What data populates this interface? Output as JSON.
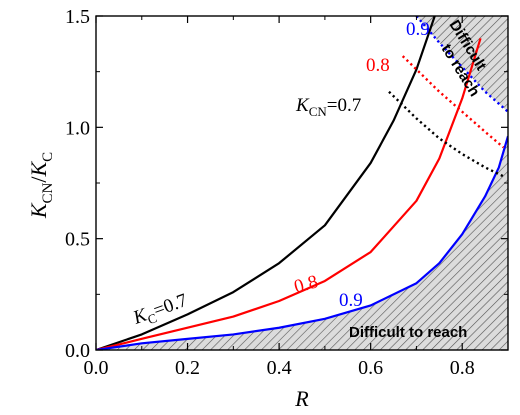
{
  "chart_data": {
    "type": "line",
    "xlabel": "R",
    "ylabel_main": "K",
    "ylabel_sub_num": "CN",
    "ylabel_slash": "/",
    "ylabel_sub_den": "C",
    "xlim": [
      0.0,
      0.9
    ],
    "ylim": [
      0.0,
      1.5
    ],
    "x_ticks": [
      "0.0",
      "0.2",
      "0.4",
      "0.6",
      "0.8"
    ],
    "x_tick_values": [
      0.0,
      0.2,
      0.4,
      0.6,
      0.8
    ],
    "y_ticks": [
      "0.0",
      "0.5",
      "1.0",
      "1.5"
    ],
    "y_tick_values": [
      0.0,
      0.5,
      1.0,
      1.5
    ],
    "series": [
      {
        "name": "0.7",
        "style": "solid",
        "color": "#000000",
        "x": [
          0,
          0.1,
          0.2,
          0.3,
          0.4,
          0.5,
          0.6,
          0.65,
          0.7,
          0.74
        ],
        "y": [
          0,
          0.07,
          0.16,
          0.26,
          0.39,
          0.56,
          0.84,
          1.03,
          1.26,
          1.5
        ]
      },
      {
        "name": "0.8",
        "style": "solid",
        "color": "#ff0000",
        "x": [
          0,
          0.1,
          0.2,
          0.3,
          0.4,
          0.5,
          0.6,
          0.7,
          0.75,
          0.8,
          0.84
        ],
        "y": [
          0,
          0.05,
          0.1,
          0.15,
          0.22,
          0.31,
          0.44,
          0.67,
          0.86,
          1.13,
          1.4
        ]
      },
      {
        "name": "0.9",
        "style": "solid",
        "color": "#0000ff",
        "x": [
          0,
          0.1,
          0.2,
          0.3,
          0.4,
          0.5,
          0.6,
          0.7,
          0.75,
          0.8,
          0.85,
          0.88,
          0.9
        ],
        "y": [
          0,
          0.03,
          0.05,
          0.07,
          0.1,
          0.14,
          0.2,
          0.3,
          0.39,
          0.52,
          0.69,
          0.82,
          0.96
        ]
      },
      {
        "name": "0.7",
        "style": "dotted",
        "color": "#000000",
        "x": [
          0.64,
          0.7,
          0.75,
          0.8,
          0.85,
          0.89
        ],
        "y": [
          1.16,
          1.04,
          0.95,
          0.88,
          0.82,
          0.78
        ]
      },
      {
        "name": "0.8",
        "style": "dotted",
        "color": "#ff0000",
        "x": [
          0.67,
          0.7,
          0.75,
          0.8,
          0.85,
          0.89
        ],
        "y": [
          1.32,
          1.26,
          1.16,
          1.07,
          0.98,
          0.91
        ]
      },
      {
        "name": "0.9",
        "style": "dotted",
        "color": "#0000ff",
        "x": [
          0.7,
          0.75,
          0.8,
          0.85,
          0.9
        ],
        "y": [
          1.5,
          1.38,
          1.27,
          1.16,
          1.07
        ]
      }
    ],
    "annotations": {
      "kc_label_main": "K",
      "kc_label_sub": "C",
      "kc_label_value": "=0.7",
      "red_solid_label": "0.8",
      "blue_solid_label": "0.9",
      "kcn_label_main": "K",
      "kcn_label_sub": "CN",
      "kcn_label_value": "=0.7",
      "red_dotted_label": "0.8",
      "blue_dotted_label": "0.9",
      "difficult_bottom": "Difficult to reach",
      "difficult_top_line1": "Difficult",
      "difficult_top_line2": "to reach"
    },
    "grid": false,
    "legend": "none"
  }
}
